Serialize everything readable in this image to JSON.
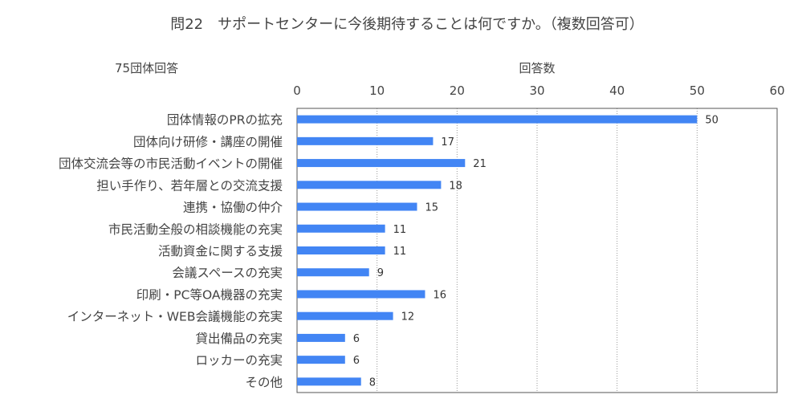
{
  "chart_data": {
    "type": "bar",
    "orientation": "horizontal",
    "title": "問22　サポートセンターに今後期待することは何ですか。（複数回答可）",
    "subtitle": "75団体回答",
    "xlabel": "回答数",
    "xlim": [
      0,
      60
    ],
    "xticks": [
      0,
      10,
      20,
      30,
      40,
      50,
      60
    ],
    "grid": true,
    "bar_color": "#4285f4",
    "categories": [
      "団体情報のPRの拡充",
      "団体向け研修・講座の開催",
      "団体交流会等の市民活動イベントの開催",
      "担い手作り、若年層との交流支援",
      "連携・協働の仲介",
      "市民活動全般の相談機能の充実",
      "活動資金に関する支援",
      "会議スペースの充実",
      "印刷・PC等OA機器の充実",
      "インターネット・WEB会議機能の充実",
      "貸出備品の充実",
      "ロッカーの充実",
      "その他"
    ],
    "values": [
      50,
      17,
      21,
      18,
      15,
      11,
      11,
      9,
      16,
      12,
      6,
      6,
      8
    ]
  }
}
